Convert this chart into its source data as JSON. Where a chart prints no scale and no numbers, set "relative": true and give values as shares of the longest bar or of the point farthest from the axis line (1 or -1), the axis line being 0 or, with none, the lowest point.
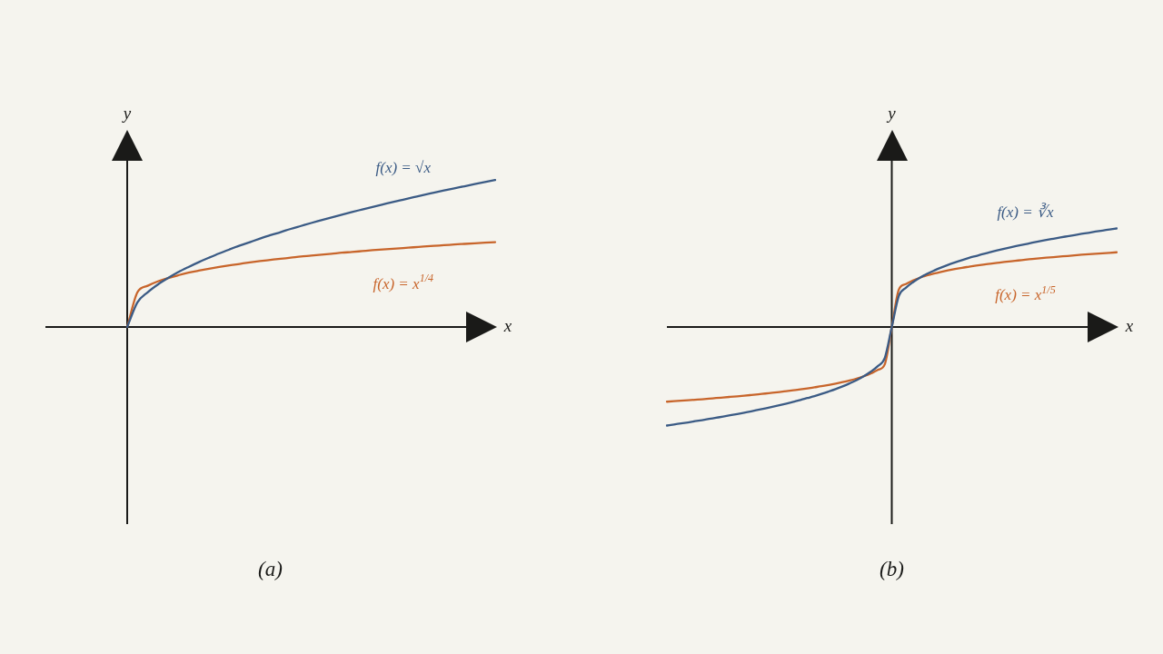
{
  "chart_data": [
    {
      "type": "line",
      "relative": true,
      "title": "(a)",
      "xlabel": "x",
      "ylabel": "y",
      "categories": [
        null,
        null,
        null,
        null,
        null,
        null,
        null,
        null,
        null,
        null,
        null,
        null,
        null,
        null,
        null,
        null,
        null,
        null,
        null,
        null,
        null,
        null,
        null,
        null,
        null,
        null,
        null,
        null,
        null,
        null,
        null,
        null,
        null,
        null,
        null,
        null,
        null,
        null,
        null,
        null,
        null,
        null,
        null,
        null,
        null
      ],
      "series": [
        {
          "name": "f(x) = √x",
          "color": "#3b5b85",
          "values": [
            null,
            null,
            null,
            null,
            null,
            null,
            null,
            null,
            0,
            0.167,
            0.236,
            0.289,
            0.333,
            0.373,
            0.408,
            0.441,
            0.471,
            0.5,
            0.527,
            0.553,
            0.577,
            0.601,
            0.624,
            0.645,
            0.667,
            0.687,
            0.707,
            0.726,
            0.745,
            0.764,
            0.782,
            0.799,
            0.816,
            0.833,
            0.85,
            0.866,
            0.882,
            0.898,
            0.913,
            0.928,
            0.943,
            0.957,
            0.972,
            0.986,
            1
          ]
        },
        {
          "name": "f(x) = x$^{1/4}$",
          "color": "#c8652b",
          "values": [
            null,
            null,
            null,
            null,
            null,
            null,
            null,
            null,
            0,
            0.236,
            0.28,
            0.31,
            0.333,
            0.352,
            0.369,
            0.383,
            0.396,
            0.408,
            0.419,
            0.429,
            0.439,
            0.448,
            0.456,
            0.464,
            0.471,
            0.479,
            0.485,
            0.492,
            0.498,
            0.505,
            0.51,
            0.516,
            0.522,
            0.527,
            0.532,
            0.537,
            0.542,
            0.547,
            0.552,
            0.556,
            0.561,
            0.565,
            0.569,
            0.573,
            0.577
          ]
        }
      ]
    },
    {
      "type": "line",
      "relative": true,
      "title": "(b)",
      "xlabel": "x",
      "ylabel": "y",
      "categories": [
        null,
        null,
        null,
        null,
        null,
        null,
        null,
        null,
        null,
        null,
        null,
        null,
        null,
        null,
        null,
        null,
        null,
        null,
        null,
        null,
        null,
        null,
        null,
        null,
        null,
        null,
        null,
        null,
        null,
        null,
        null,
        null,
        null,
        null,
        null,
        null,
        null,
        null,
        null,
        null,
        null,
        null,
        null,
        null,
        null,
        null,
        null,
        null,
        null,
        null,
        null,
        null,
        null,
        null,
        null,
        null,
        null,
        null,
        null,
        null,
        null,
        null,
        null,
        null,
        null
      ],
      "series": [
        {
          "name": "f(x) = ∛x",
          "color": "#3b5b85",
          "values": [
            -1,
            -0.989,
            -0.979,
            -0.968,
            -0.956,
            -0.945,
            -0.933,
            -0.921,
            -0.909,
            -0.896,
            -0.883,
            -0.869,
            -0.855,
            -0.84,
            -0.825,
            -0.81,
            -0.794,
            -0.777,
            -0.759,
            -0.741,
            -0.721,
            -0.701,
            -0.679,
            -0.655,
            -0.63,
            -0.603,
            -0.572,
            -0.539,
            -0.5,
            -0.454,
            -0.397,
            -0.315,
            0,
            0.315,
            0.397,
            0.454,
            0.5,
            0.539,
            0.572,
            0.603,
            0.63,
            0.655,
            0.679,
            0.701,
            0.721,
            0.741,
            0.759,
            0.777,
            0.794,
            0.81,
            0.825,
            0.84,
            0.855,
            0.869,
            0.883,
            0.896,
            0.909,
            0.921,
            0.933,
            0.945,
            0.956,
            0.968,
            0.979,
            0.989,
            1
          ]
        },
        {
          "name": "f(x) = x$^{1/5}$",
          "color": "#c8652b",
          "values": [
            -0.758,
            -0.753,
            -0.748,
            -0.743,
            -0.738,
            -0.733,
            -0.727,
            -0.721,
            -0.715,
            -0.709,
            -0.703,
            -0.697,
            -0.69,
            -0.683,
            -0.675,
            -0.668,
            -0.66,
            -0.651,
            -0.642,
            -0.633,
            -0.623,
            -0.612,
            -0.601,
            -0.588,
            -0.574,
            -0.559,
            -0.542,
            -0.523,
            -0.5,
            -0.472,
            -0.435,
            -0.379,
            0,
            0.379,
            0.435,
            0.472,
            0.5,
            0.523,
            0.542,
            0.559,
            0.574,
            0.588,
            0.601,
            0.612,
            0.623,
            0.633,
            0.642,
            0.651,
            0.66,
            0.668,
            0.675,
            0.683,
            0.69,
            0.697,
            0.703,
            0.709,
            0.715,
            0.721,
            0.727,
            0.733,
            0.738,
            0.743,
            0.748,
            0.753,
            0.758
          ]
        }
      ]
    }
  ]
}
